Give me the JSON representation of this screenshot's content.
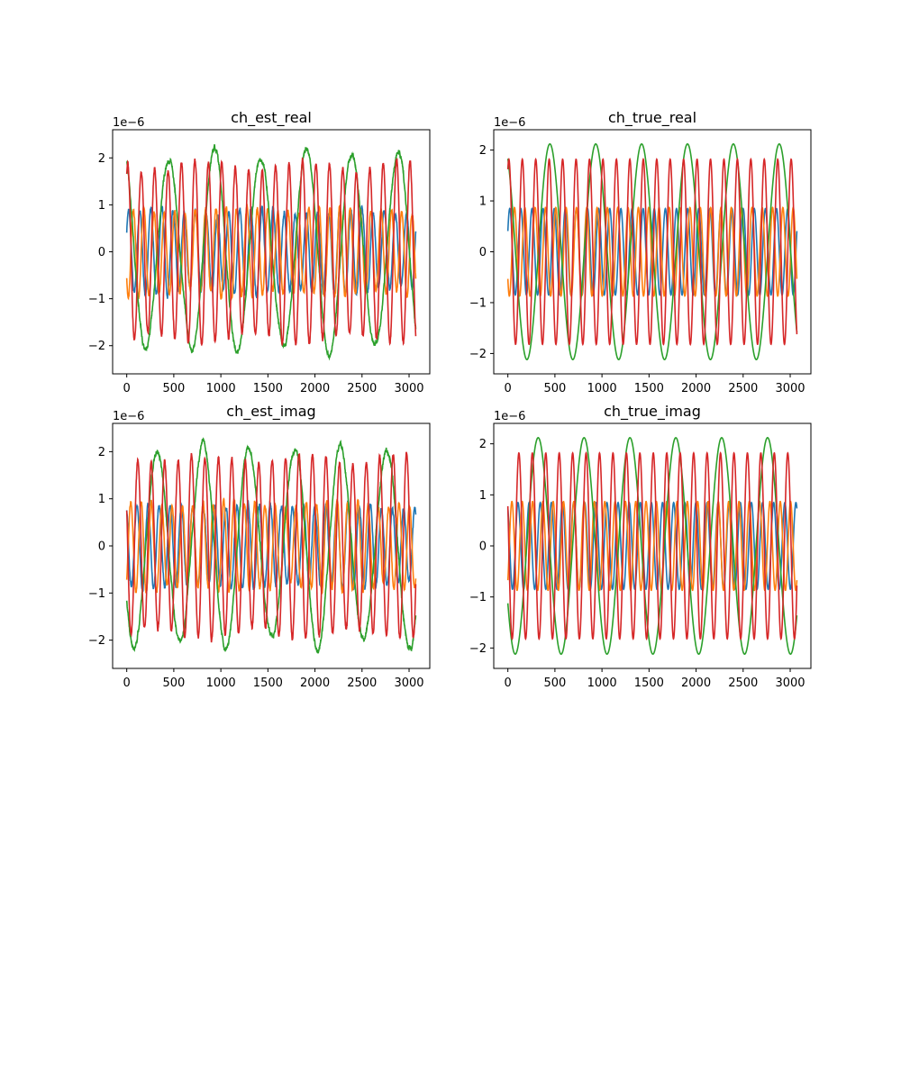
{
  "figure": {
    "background": "#ffffff",
    "series_colors": [
      "#1f77b4",
      "#ff7f0e",
      "#2ca02c",
      "#d62728"
    ]
  },
  "chart_data": [
    {
      "type": "line",
      "title": "ch_est_real",
      "xlabel": "",
      "ylabel": "",
      "y_offset_label": "1e−6",
      "xlim": [
        -150,
        3220
      ],
      "ylim": [
        -2.6,
        2.6
      ],
      "x_ticks": [
        "0",
        "500",
        "1000",
        "1500",
        "2000",
        "2500",
        "3000"
      ],
      "y_ticks": [
        "−2",
        "−1",
        "0",
        "1",
        "2"
      ],
      "grid": false,
      "legend": "none",
      "x_range": [
        0,
        3071
      ],
      "noisy": true,
      "series": [
        {
          "color": "#1f77b4",
          "amplitude": 0.85,
          "cycles": 26,
          "phase": 0.5
        },
        {
          "color": "#ff7f0e",
          "amplitude": 0.9,
          "cycles": 28,
          "phase": 3.8
        },
        {
          "color": "#2ca02c",
          "amplitude": 2.1,
          "cycles": 6.3,
          "phase": 2.1
        },
        {
          "color": "#d62728",
          "amplitude": 1.85,
          "cycles": 21.5,
          "phase": 1.1
        }
      ]
    },
    {
      "type": "line",
      "title": "ch_true_real",
      "xlabel": "",
      "ylabel": "",
      "y_offset_label": "1e−6",
      "xlim": [
        -150,
        3220
      ],
      "ylim": [
        -2.4,
        2.4
      ],
      "x_ticks": [
        "0",
        "500",
        "1000",
        "1500",
        "2000",
        "2500",
        "3000"
      ],
      "y_ticks": [
        "−2",
        "−1",
        "0",
        "1",
        "2"
      ],
      "grid": false,
      "legend": "none",
      "x_range": [
        0,
        3071
      ],
      "noisy": false,
      "series": [
        {
          "color": "#1f77b4",
          "amplitude": 0.85,
          "cycles": 26,
          "phase": 0.5
        },
        {
          "color": "#ff7f0e",
          "amplitude": 0.87,
          "cycles": 28,
          "phase": 3.8
        },
        {
          "color": "#2ca02c",
          "amplitude": 2.12,
          "cycles": 6.3,
          "phase": 2.1
        },
        {
          "color": "#d62728",
          "amplitude": 1.82,
          "cycles": 21.5,
          "phase": 1.1
        }
      ]
    },
    {
      "type": "line",
      "title": "ch_est_imag",
      "xlabel": "",
      "ylabel": "",
      "y_offset_label": "1e−6",
      "xlim": [
        -150,
        3220
      ],
      "ylim": [
        -2.6,
        2.6
      ],
      "x_ticks": [
        "0",
        "500",
        "1000",
        "1500",
        "2000",
        "2500",
        "3000"
      ],
      "y_ticks": [
        "−2",
        "−1",
        "0",
        "1",
        "2"
      ],
      "grid": false,
      "legend": "none",
      "x_range": [
        0,
        3071
      ],
      "noisy": true,
      "series": [
        {
          "color": "#1f77b4",
          "amplitude": 0.85,
          "cycles": 26,
          "phase": 2.1
        },
        {
          "color": "#ff7f0e",
          "amplitude": 0.9,
          "cycles": 28,
          "phase": 5.4
        },
        {
          "color": "#2ca02c",
          "amplitude": 2.1,
          "cycles": 6.3,
          "phase": 3.7
        },
        {
          "color": "#d62728",
          "amplitude": 1.85,
          "cycles": 21.5,
          "phase": 2.7
        }
      ]
    },
    {
      "type": "line",
      "title": "ch_true_imag",
      "xlabel": "",
      "ylabel": "",
      "y_offset_label": "1e−6",
      "xlim": [
        -150,
        3220
      ],
      "ylim": [
        -2.4,
        2.4
      ],
      "x_ticks": [
        "0",
        "500",
        "1000",
        "1500",
        "2000",
        "2500",
        "3000"
      ],
      "y_ticks": [
        "−2",
        "−1",
        "0",
        "1",
        "2"
      ],
      "grid": false,
      "legend": "none",
      "x_range": [
        0,
        3071
      ],
      "noisy": false,
      "series": [
        {
          "color": "#1f77b4",
          "amplitude": 0.85,
          "cycles": 26,
          "phase": 2.1
        },
        {
          "color": "#ff7f0e",
          "amplitude": 0.87,
          "cycles": 28,
          "phase": 5.4
        },
        {
          "color": "#2ca02c",
          "amplitude": 2.12,
          "cycles": 6.3,
          "phase": 3.7
        },
        {
          "color": "#d62728",
          "amplitude": 1.82,
          "cycles": 21.5,
          "phase": 2.7
        }
      ]
    }
  ]
}
